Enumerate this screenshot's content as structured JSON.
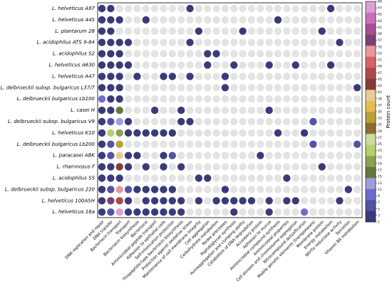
{
  "chart_data": {
    "type": "dotmatrix",
    "rows": [
      "L. helveticus A97",
      "L. helveticus 44S",
      "L. plantarum 28",
      "L. acidophilus ATS 9-84",
      "L. acidophilus S2",
      "L. helveticus A630",
      "L. helveticus A47",
      "L. delbrueckii subsp. bulgaricus L37/7",
      "L. delbrueckii bulgaricus Lb100",
      "L. casei H",
      "L. delbrueckii subsp. bulgaricus V9",
      "L. helveticus K10",
      "L. delbrueckii bulgaricus Lb200",
      "L. paracasei ABK",
      "L. rhamnosus F",
      "L. acidophilus S5",
      "L. delbrueckii subsp. bulgaricus 220",
      "L. helveticus 100ASH",
      "L. helveticus 18a"
    ],
    "columns": [
      "DNA replication and repair",
      "DNA transfer",
      "Bacteriocin transport",
      "Transport",
      "Bacteriocin biosynthesis",
      "Bacteriocin",
      "Antimicrobial peptide transport",
      "Adhesion to epithelial cells",
      "Self-intoxication protection",
      "Thiopeptide-type bacteriocin biosynthesis",
      "Protection against oxidative stress",
      "Maintenance of cell membrane integrity",
      "Cell aggregation",
      "Carbohydrate metabolism",
      "Redox processes",
      "Peptidoglycan synthesis",
      "Autoaggregation and clumping ability",
      "Catabolism of DNA degradation",
      "Accessory protein",
      "Adhesion to mucus",
      "Antimicrobial compound synthesis",
      "Antimicrobial properties",
      "Cell division and chromosome segregation",
      "Nitrocompound detoxification",
      "Mobile genetic elements (transposases)",
      "Membrane protein",
      "Energy metabolism",
      "Nitrite reductase activity",
      "Secretion",
      "Vitamin B6 metabolism"
    ],
    "values": [
      [
        2,
        1,
        null,
        null,
        null,
        null,
        null,
        null,
        null,
        null,
        1,
        null,
        null,
        null,
        null,
        null,
        null,
        null,
        null,
        null,
        null,
        null,
        null,
        null,
        null,
        null,
        1,
        null,
        null,
        null
      ],
      [
        2,
        1,
        1,
        null,
        null,
        1,
        null,
        null,
        null,
        null,
        null,
        null,
        null,
        null,
        null,
        null,
        null,
        null,
        null,
        null,
        1,
        null,
        null,
        null,
        null,
        null,
        null,
        null,
        null,
        null
      ],
      [
        2,
        1,
        null,
        null,
        null,
        null,
        null,
        null,
        null,
        null,
        null,
        1,
        null,
        null,
        null,
        null,
        1,
        null,
        null,
        null,
        null,
        null,
        null,
        null,
        null,
        1,
        null,
        null,
        null,
        null
      ],
      [
        2,
        1,
        1,
        1,
        null,
        null,
        null,
        null,
        null,
        null,
        1,
        null,
        null,
        null,
        null,
        null,
        null,
        null,
        null,
        null,
        null,
        null,
        null,
        null,
        null,
        null,
        null,
        1,
        null,
        null
      ],
      [
        2,
        1,
        1,
        null,
        null,
        null,
        null,
        null,
        null,
        null,
        null,
        null,
        1,
        1,
        null,
        null,
        null,
        null,
        null,
        null,
        null,
        null,
        null,
        null,
        null,
        null,
        null,
        null,
        null,
        null
      ],
      [
        2,
        1,
        1,
        1,
        null,
        null,
        null,
        null,
        null,
        null,
        null,
        null,
        1,
        null,
        null,
        1,
        null,
        null,
        null,
        1,
        null,
        null,
        1,
        null,
        null,
        null,
        1,
        null,
        null,
        null
      ],
      [
        2,
        1,
        1,
        null,
        1,
        null,
        null,
        1,
        1,
        null,
        1,
        null,
        null,
        null,
        1,
        null,
        null,
        null,
        null,
        null,
        null,
        null,
        null,
        null,
        null,
        null,
        null,
        null,
        null,
        null
      ],
      [
        2,
        1,
        1,
        null,
        null,
        null,
        null,
        null,
        null,
        null,
        null,
        null,
        null,
        null,
        1,
        null,
        null,
        null,
        null,
        null,
        null,
        null,
        null,
        null,
        null,
        null,
        null,
        null,
        null,
        1
      ],
      [
        9,
        2,
        1,
        null,
        null,
        null,
        null,
        null,
        null,
        null,
        null,
        null,
        null,
        null,
        null,
        null,
        null,
        null,
        null,
        null,
        null,
        null,
        null,
        null,
        null,
        null,
        null,
        null,
        null,
        null
      ],
      [
        3,
        2,
        16,
        null,
        null,
        null,
        1,
        null,
        null,
        1,
        null,
        null,
        null,
        null,
        null,
        null,
        null,
        null,
        null,
        1,
        null,
        null,
        null,
        null,
        null,
        null,
        null,
        null,
        null,
        null
      ],
      [
        3,
        6,
        12,
        1,
        null,
        null,
        null,
        null,
        null,
        1,
        1,
        null,
        null,
        null,
        null,
        null,
        null,
        null,
        null,
        null,
        null,
        null,
        null,
        null,
        6,
        null,
        null,
        null,
        null,
        null
      ],
      [
        3,
        23,
        19,
        1,
        1,
        1,
        1,
        1,
        1,
        null,
        null,
        null,
        null,
        null,
        null,
        null,
        null,
        null,
        null,
        null,
        1,
        null,
        null,
        1,
        null,
        null,
        null,
        null,
        null,
        null
      ],
      [
        3,
        6,
        33,
        null,
        null,
        null,
        null,
        null,
        null,
        null,
        null,
        null,
        null,
        null,
        null,
        null,
        null,
        null,
        null,
        null,
        null,
        null,
        null,
        null,
        6,
        null,
        null,
        null,
        null,
        5
      ],
      [
        3,
        5,
        40,
        1,
        1,
        null,
        null,
        1,
        5,
        null,
        null,
        null,
        null,
        null,
        null,
        null,
        null,
        null,
        1,
        null,
        null,
        null,
        null,
        null,
        null,
        null,
        null,
        null,
        null,
        null
      ],
      [
        2,
        2,
        44,
        1,
        null,
        1,
        null,
        1,
        null,
        1,
        null,
        null,
        null,
        null,
        null,
        null,
        null,
        null,
        null,
        null,
        null,
        null,
        null,
        null,
        null,
        1,
        null,
        null,
        null,
        null
      ],
      [
        2,
        2,
        1,
        null,
        null,
        null,
        null,
        null,
        null,
        null,
        null,
        1,
        1,
        null,
        null,
        null,
        null,
        null,
        null,
        null,
        null,
        1,
        null,
        null,
        null,
        null,
        null,
        null,
        null,
        null
      ],
      [
        3,
        5,
        54,
        5,
        2,
        2,
        2,
        2,
        2,
        null,
        null,
        null,
        null,
        null,
        1,
        null,
        null,
        null,
        null,
        null,
        null,
        null,
        null,
        null,
        null,
        null,
        null,
        null,
        1,
        null
      ],
      [
        3,
        57,
        47,
        2,
        null,
        1,
        1,
        2,
        1,
        1,
        null,
        1,
        null,
        1,
        1,
        1,
        1,
        1,
        null,
        1,
        null,
        1,
        1,
        null,
        null,
        null,
        null,
        1,
        null,
        null
      ],
      [
        3,
        5,
        68,
        2,
        2,
        1,
        1,
        1,
        1,
        1,
        null,
        null,
        null,
        null,
        null,
        1,
        null,
        null,
        null,
        1,
        null,
        null,
        null,
        8,
        null,
        null,
        null,
        null,
        null,
        null
      ]
    ],
    "colormap": [
      "#393b79",
      "#5254a3",
      "#6b6ecf",
      "#9c9ede",
      "#637939",
      "#8ca252",
      "#b5cf6b",
      "#cedb9c",
      "#8c6d31",
      "#bd9e39",
      "#e7ba52",
      "#e7cb94",
      "#843c39",
      "#ad494a",
      "#d6616b",
      "#e7969c",
      "#7b4173",
      "#a55194",
      "#ce6dbd",
      "#de9ed6"
    ],
    "absent_color": "#e3e3e3",
    "clim": [
      1,
      69
    ],
    "cticks": [
      1,
      3,
      5,
      7,
      9,
      11,
      13,
      15,
      17,
      19,
      21,
      23,
      25,
      27,
      29,
      31,
      33,
      35,
      37,
      39,
      41,
      43,
      45,
      47,
      49,
      51,
      53,
      55,
      57,
      59,
      61,
      63,
      65,
      67,
      69
    ],
    "colorbar_label": "Protein count"
  }
}
